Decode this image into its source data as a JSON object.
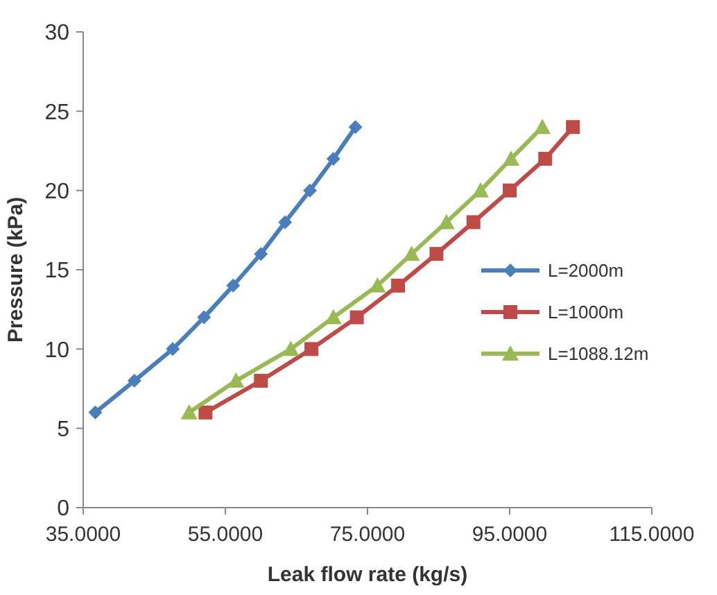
{
  "chart_data": {
    "type": "line",
    "xlabel": "Leak flow rate (kg/s)",
    "ylabel": "Pressure (kPa)",
    "xlim": [
      35,
      115
    ],
    "xticks": [
      {
        "value": 35,
        "label": "35.0000"
      },
      {
        "value": 55,
        "label": "55.0000"
      },
      {
        "value": 75,
        "label": "75.0000"
      },
      {
        "value": 95,
        "label": "95.0000"
      },
      {
        "value": 115,
        "label": "115.0000"
      }
    ],
    "ylim": [
      0,
      30
    ],
    "yticks": [
      0,
      5,
      10,
      15,
      20,
      25,
      30
    ],
    "grid": false,
    "legend": "right",
    "series": [
      {
        "name": "L=2000m",
        "color": "#4a7ebb",
        "marker": "diamond",
        "x": [
          36.7,
          42.2,
          47.6,
          52.0,
          56.1,
          60.0,
          63.4,
          66.9,
          70.2,
          73.3
        ],
        "values": [
          6,
          8,
          10,
          12,
          14,
          16,
          18,
          20,
          22,
          24
        ]
      },
      {
        "name": "L=1000m",
        "color": "#be4b48",
        "marker": "square",
        "x": [
          52.2,
          60.0,
          67.1,
          73.5,
          79.3,
          84.7,
          89.9,
          95.0,
          100.0,
          103.9
        ],
        "values": [
          6,
          8,
          10,
          12,
          14,
          16,
          18,
          20,
          22,
          24
        ]
      },
      {
        "name": "L=1088.12m",
        "color": "#98b954",
        "marker": "triangle",
        "x": [
          49.9,
          56.5,
          64.2,
          70.2,
          76.4,
          81.2,
          86.1,
          90.9,
          95.2,
          99.6
        ],
        "values": [
          6,
          8,
          10,
          12,
          14,
          16,
          18,
          20,
          22,
          24
        ]
      }
    ]
  }
}
